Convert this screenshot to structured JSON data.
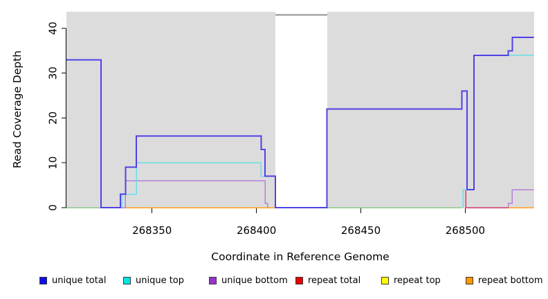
{
  "chart_data": {
    "type": "line",
    "subtype": "step-coverage",
    "title": "",
    "xlabel": "Coordinate in Reference Genome",
    "ylabel": "Read Coverage Depth",
    "xlim": [
      268309,
      268533
    ],
    "ylim": [
      0,
      44
    ],
    "xticks": [
      268350,
      268400,
      268450,
      268500
    ],
    "yticks": [
      0,
      10,
      20,
      30,
      40
    ],
    "grid": false,
    "plot_background": "#ffffff",
    "shaded_regions": [
      {
        "name": "shaded-left",
        "from": 268309,
        "to": 268409,
        "color": "#dcdcdc"
      },
      {
        "name": "shaded-right",
        "from": 268434,
        "to": 268533,
        "color": "#dcdcdc"
      }
    ],
    "offscale_marker": {
      "from": 268409,
      "to": 268434,
      "value": 43,
      "color": "#8f8f8f"
    },
    "series": [
      {
        "name": "repeat top",
        "line_color": "#8cc98c",
        "width": 1.5,
        "segments": [
          [
            [
              268309,
              0
            ],
            [
              268334.5,
              0
            ]
          ],
          [
            [
              268433.8,
              0
            ],
            [
              268498.3,
              0
            ]
          ]
        ]
      },
      {
        "name": "repeat bottom",
        "line_color": "#ffa11c",
        "width": 1.5,
        "segments": [
          [
            [
              268337.3,
              0
            ],
            [
              268408.7,
              0
            ]
          ],
          [
            [
              268520.6,
              0
            ],
            [
              268532.9,
              0
            ]
          ]
        ]
      },
      {
        "name": "unique bottom",
        "line_color": "#b47fdc",
        "width": 1.5,
        "segments": [
          [
            [
              268325.5,
              0
            ],
            [
              268337.3,
              0
            ],
            [
              268337.3,
              6
            ],
            [
              268404.1,
              6
            ],
            [
              268404.1,
              1
            ],
            [
              268405.3,
              1
            ],
            [
              268405.3,
              0
            ]
          ],
          [
            [
              268520.6,
              0
            ],
            [
              268520.6,
              1
            ],
            [
              268522.5,
              1
            ],
            [
              268522.5,
              4
            ],
            [
              268532.9,
              4
            ]
          ]
        ]
      },
      {
        "name": "repeat total",
        "line_color": "#d6356e",
        "width": 1.5,
        "segments": [
          [
            [
              268500.2,
              4
            ],
            [
              268500.2,
              0
            ],
            [
              268520.6,
              0
            ]
          ]
        ]
      },
      {
        "name": "unique top",
        "line_color": "#66dfe6",
        "width": 1.5,
        "segments": [
          [
            [
              268335.6,
              0
            ],
            [
              268335.6,
              3
            ],
            [
              268342.5,
              3
            ],
            [
              268342.5,
              10
            ],
            [
              268402.2,
              10
            ],
            [
              268402.2,
              7
            ],
            [
              268409,
              7
            ],
            [
              268409,
              0
            ]
          ],
          [
            [
              268498.9,
              0
            ],
            [
              268498.9,
              4
            ],
            [
              268504.2,
              4
            ],
            [
              268504.2,
              34
            ],
            [
              268532.9,
              34
            ]
          ]
        ]
      },
      {
        "name": "unique total",
        "line_color": "#4f41e6",
        "width": 2,
        "segments": [
          [
            [
              268309,
              33
            ],
            [
              268325.5,
              33
            ],
            [
              268325.5,
              0
            ],
            [
              268334.8,
              0
            ],
            [
              268334.8,
              3
            ],
            [
              268337.3,
              3
            ],
            [
              268337.3,
              9
            ],
            [
              268342.5,
              9
            ],
            [
              268342.5,
              16
            ],
            [
              268402.2,
              16
            ],
            [
              268402.2,
              13
            ],
            [
              268404.1,
              13
            ],
            [
              268404.1,
              7
            ],
            [
              268409,
              7
            ],
            [
              268409,
              0
            ],
            [
              268433.8,
              0
            ],
            [
              268433.8,
              22
            ],
            [
              268498.3,
              22
            ],
            [
              268498.3,
              26
            ],
            [
              268500.8,
              26
            ],
            [
              268500.8,
              4
            ],
            [
              268504.2,
              4
            ],
            [
              268504.2,
              34
            ],
            [
              268520.6,
              34
            ],
            [
              268520.6,
              35
            ],
            [
              268522.5,
              35
            ],
            [
              268522.5,
              38
            ],
            [
              268532.9,
              38
            ]
          ]
        ]
      }
    ],
    "legend": {
      "position": "bottom",
      "items": [
        {
          "label": "unique total",
          "color": "#0d0dee"
        },
        {
          "label": "unique top",
          "color": "#00e5e5"
        },
        {
          "label": "unique bottom",
          "color": "#9932cc"
        },
        {
          "label": "repeat total",
          "color": "#e60000"
        },
        {
          "label": "repeat top",
          "color": "#ffff00"
        },
        {
          "label": "repeat bottom",
          "color": "#ff9900"
        }
      ]
    }
  }
}
